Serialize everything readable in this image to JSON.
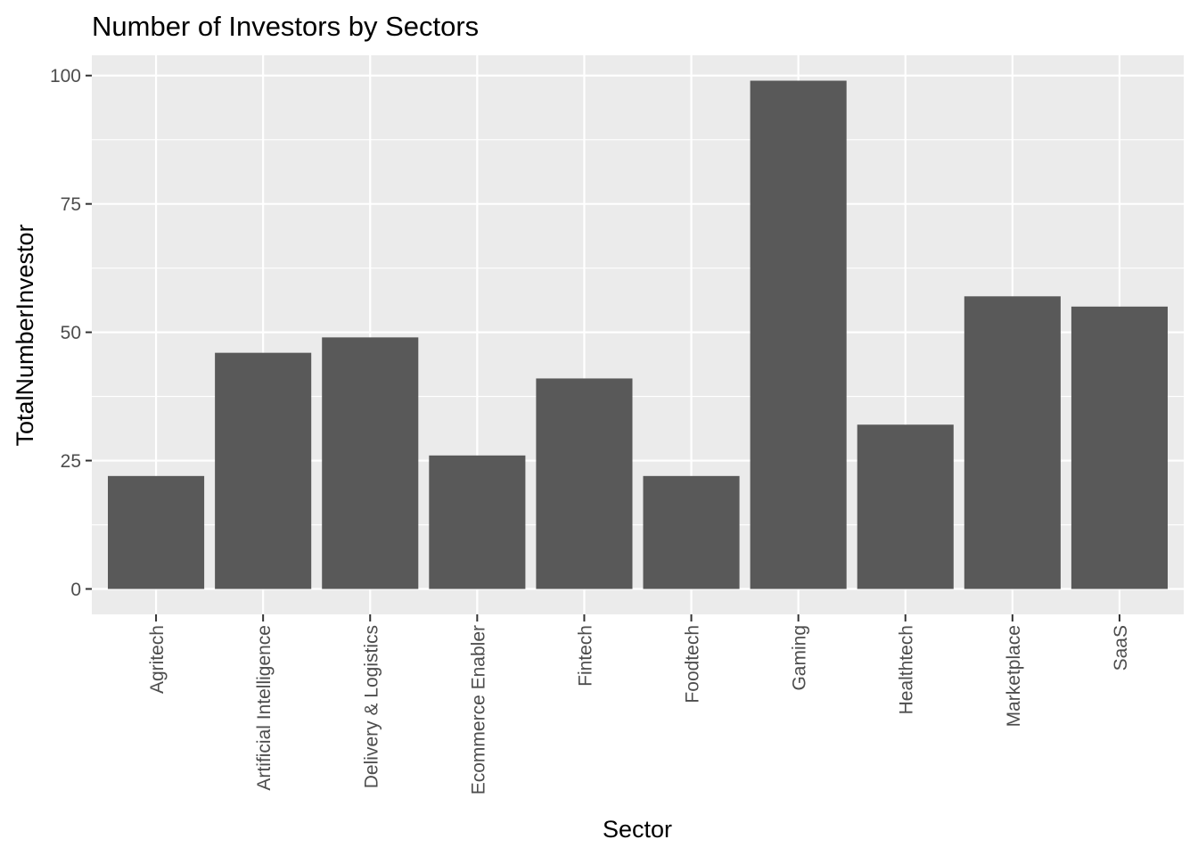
{
  "chart_data": {
    "type": "bar",
    "title": "Number of Investors by Sectors",
    "xlabel": "Sector",
    "ylabel": "TotalNumberInvestor",
    "categories": [
      "Agritech",
      "Artificial Intelligence",
      "Delivery & Logistics",
      "Ecommerce Enabler",
      "Fintech",
      "Foodtech",
      "Gaming",
      "Healthtech",
      "Marketplace",
      "SaaS"
    ],
    "values": [
      22,
      46,
      49,
      26,
      41,
      22,
      99,
      32,
      57,
      55
    ],
    "ylim": [
      -4.95,
      103.95
    ],
    "yticks": [
      0,
      25,
      50,
      75,
      100
    ],
    "ytick_labels": [
      "0",
      "25",
      "50",
      "75",
      "100"
    ],
    "grid": true,
    "legend": "none",
    "colors": {
      "bar": "#595959",
      "panel": "#EBEBEB",
      "grid": "#FFFFFF",
      "tick": "#333333",
      "tick_text": "#4D4D4D"
    }
  }
}
